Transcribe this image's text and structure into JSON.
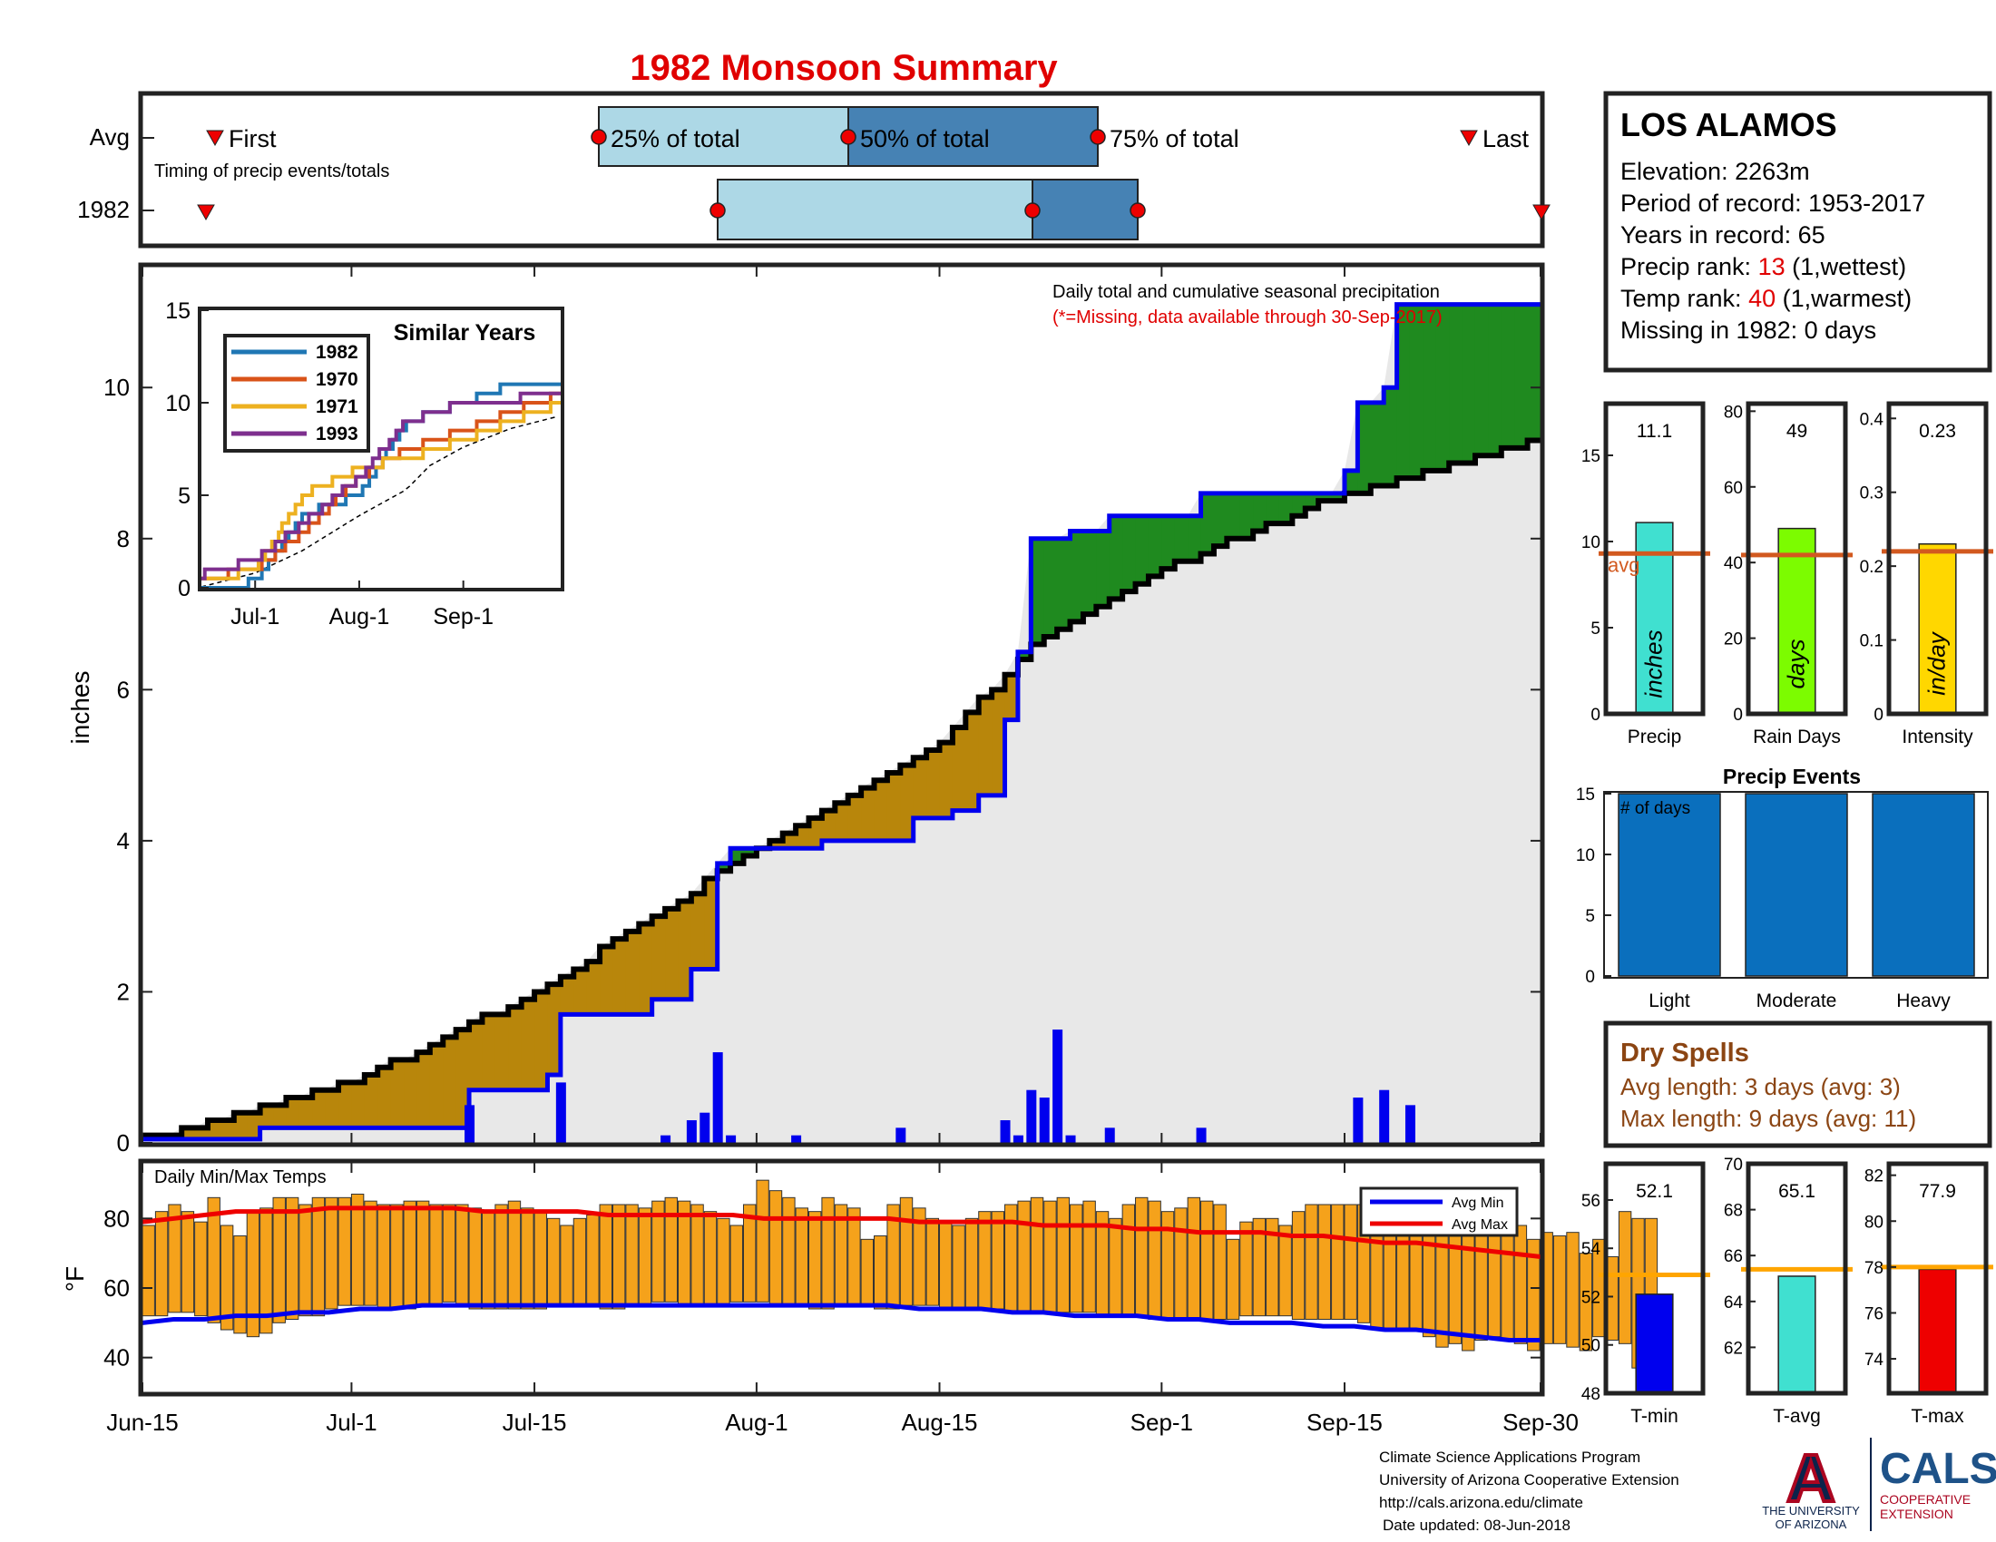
{
  "title": "1982 Monsoon Summary",
  "colors": {
    "title": "#e00000",
    "observed_line": "#0000ee",
    "average_line": "#000000",
    "above_avg_fill": "#1f8a1f",
    "below_avg_fill": "#b8860b",
    "background_fill": "#e8e8e8",
    "daily_bar": "#0000ee",
    "temp_bar": "#f5a21b",
    "avg_min": "#0000ee",
    "avg_max": "#ee0000",
    "precip_bar": "#40e0d0",
    "raindays_bar": "#7cfc00",
    "intensity_bar": "#ffd700",
    "avg_marker": "#d2591f",
    "events_bar": "#0a6fbd",
    "dry_spell_text": "#8b4513",
    "tmin_bar": "#0000ee",
    "tavg_bar": "#40e0d0",
    "tmax_bar": "#ee0000",
    "temp_avg_marker": "#ffa500"
  },
  "timing": {
    "avg_label": "Avg",
    "year_label": "1982",
    "subtitle": "Timing of precip events/totals",
    "first_label": "First",
    "last_label": "Last",
    "p25_label": "25% of total",
    "p50_label": "50% of total",
    "p75_label": "75% of total",
    "avg_dates": {
      "first": "Jun-19",
      "p25": "Jul-19",
      "p50": "Aug-6",
      "p75": "Aug-24",
      "last": "Sep-28"
    },
    "year_dates": {
      "first": "Jun-19",
      "p25": "Jul-28",
      "p50": "Aug-20",
      "p75": "Aug-27",
      "last": "Sep-30"
    }
  },
  "station": {
    "name": "LOS ALAMOS",
    "elevation": "Elevation: 2263m",
    "period": "Period of record: 1953-2017",
    "years": "Years in record: 65",
    "precip_rank_prefix": "Precip rank: ",
    "precip_rank_value": "13",
    "precip_rank_suffix": " (1,wettest)",
    "temp_rank_prefix": "Temp rank: ",
    "temp_rank_value": "40",
    "temp_rank_suffix": " (1,warmest)",
    "missing": "Missing in 1982: 0 days"
  },
  "main_chart": {
    "ylabel": "inches",
    "note": "Daily total and cumulative seasonal precipitation",
    "note_missing": "(*=Missing, data available through 30-Sep-2017)",
    "y_ticks": [
      "0",
      "2",
      "4",
      "6",
      "8",
      "10"
    ],
    "x_ticks": [
      "Jun-15",
      "Jul-1",
      "Jul-15",
      "Aug-1",
      "Aug-15",
      "Sep-1",
      "Sep-15",
      "Sep-30"
    ],
    "inset": {
      "title": "Similar Years",
      "y_ticks": [
        "0",
        "5",
        "10",
        "15"
      ],
      "x_ticks": [
        "Jul-1",
        "Aug-1",
        "Sep-1"
      ],
      "legend": [
        {
          "name": "1982",
          "color": "#1f77b4"
        },
        {
          "name": "1970",
          "color": "#d95319"
        },
        {
          "name": "1971",
          "color": "#edb120"
        },
        {
          "name": "1993",
          "color": "#7e2f8e"
        }
      ]
    }
  },
  "chart_data": [
    {
      "type": "line",
      "title": "Daily total and cumulative seasonal precipitation",
      "ylabel": "inches",
      "xlim": [
        "Jun-15",
        "Sep-30"
      ],
      "ylim": [
        0,
        11.6
      ],
      "series": [
        {
          "name": "1982 cumulative",
          "points": [
            [
              "Jun-15",
              0.05
            ],
            [
              "Jun-24",
              0.2
            ],
            [
              "Jul-9",
              0.2
            ],
            [
              "Jul-10",
              0.7
            ],
            [
              "Jul-16",
              0.9
            ],
            [
              "Jul-17",
              1.7
            ],
            [
              "Jul-23",
              1.7
            ],
            [
              "Jul-24",
              1.9
            ],
            [
              "Jul-27",
              2.3
            ],
            [
              "Jul-29",
              3.7
            ],
            [
              "Jul-30",
              3.9
            ],
            [
              "Aug-6",
              4.0
            ],
            [
              "Aug-13",
              4.3
            ],
            [
              "Aug-16",
              4.4
            ],
            [
              "Aug-18",
              4.6
            ],
            [
              "Aug-20",
              5.6
            ],
            [
              "Aug-21",
              6.5
            ],
            [
              "Aug-22",
              8.0
            ],
            [
              "Aug-25",
              8.1
            ],
            [
              "Aug-28",
              8.3
            ],
            [
              "Sep-4",
              8.6
            ],
            [
              "Sep-15",
              8.9
            ],
            [
              "Sep-16",
              9.8
            ],
            [
              "Sep-18",
              10.0
            ],
            [
              "Sep-19",
              11.1
            ],
            [
              "Sep-30",
              11.1
            ]
          ]
        },
        {
          "name": "Average cumulative",
          "points": [
            [
              "Jun-15",
              0.05
            ],
            [
              "Jul-1",
              0.8
            ],
            [
              "Jul-15",
              2.0
            ],
            [
              "Aug-1",
              3.9
            ],
            [
              "Aug-15",
              5.3
            ],
            [
              "Aug-22",
              6.6
            ],
            [
              "Sep-1",
              7.6
            ],
            [
              "Sep-15",
              8.6
            ],
            [
              "Sep-30",
              9.3
            ]
          ]
        }
      ],
      "daily_totals": [
        [
          "Jul-10",
          0.5
        ],
        [
          "Jul-17",
          0.8
        ],
        [
          "Jul-25",
          0.1
        ],
        [
          "Jul-27",
          0.3
        ],
        [
          "Jul-28",
          0.4
        ],
        [
          "Jul-29",
          1.2
        ],
        [
          "Jul-30",
          0.1
        ],
        [
          "Aug-4",
          0.1
        ],
        [
          "Aug-12",
          0.2
        ],
        [
          "Aug-20",
          0.3
        ],
        [
          "Aug-21",
          0.1
        ],
        [
          "Aug-22",
          0.7
        ],
        [
          "Aug-23",
          0.6
        ],
        [
          "Aug-24",
          1.5
        ],
        [
          "Aug-25",
          0.1
        ],
        [
          "Aug-28",
          0.2
        ],
        [
          "Sep-4",
          0.2
        ],
        [
          "Sep-16",
          0.6
        ],
        [
          "Sep-18",
          0.7
        ],
        [
          "Sep-20",
          0.5
        ]
      ]
    },
    {
      "type": "line",
      "title": "Similar Years",
      "ylim": [
        0,
        15
      ],
      "series": [
        {
          "name": "1982",
          "points": [
            [
              "Jun-15",
              0
            ],
            [
              "Jul-1",
              0.3
            ],
            [
              "Jul-15",
              4
            ],
            [
              "Aug-1",
              5
            ],
            [
              "Aug-15",
              9
            ],
            [
              "Sep-1",
              10
            ],
            [
              "Sep-15",
              11
            ],
            [
              "Sep-30",
              11
            ]
          ]
        },
        {
          "name": "1970",
          "points": [
            [
              "Jun-15",
              0.5
            ],
            [
              "Jul-1",
              1
            ],
            [
              "Jul-15",
              3
            ],
            [
              "Aug-1",
              6
            ],
            [
              "Aug-15",
              7.5
            ],
            [
              "Sep-1",
              8.5
            ],
            [
              "Sep-15",
              9.5
            ],
            [
              "Sep-30",
              10.5
            ]
          ]
        },
        {
          "name": "1971",
          "points": [
            [
              "Jun-15",
              0.3
            ],
            [
              "Jul-1",
              1
            ],
            [
              "Jul-15",
              5
            ],
            [
              "Aug-1",
              6.5
            ],
            [
              "Aug-15",
              7
            ],
            [
              "Sep-1",
              8
            ],
            [
              "Sep-15",
              9
            ],
            [
              "Sep-30",
              10
            ]
          ]
        },
        {
          "name": "1993",
          "points": [
            [
              "Jun-15",
              0.7
            ],
            [
              "Jul-1",
              1.5
            ],
            [
              "Jul-15",
              3.5
            ],
            [
              "Aug-1",
              6
            ],
            [
              "Aug-15",
              9
            ],
            [
              "Sep-1",
              10
            ],
            [
              "Sep-15",
              10.2
            ],
            [
              "Sep-30",
              10.5
            ]
          ]
        }
      ]
    },
    {
      "type": "bar",
      "title": "Daily Min/Max Temps",
      "ylabel": "°F",
      "ylim": [
        30,
        96
      ],
      "daily_min": [
        52,
        52,
        53,
        53,
        52,
        50,
        48,
        47,
        46,
        47,
        50,
        51,
        52,
        52,
        54,
        55,
        55,
        55,
        54,
        54,
        54,
        55,
        55,
        56,
        55,
        54,
        54,
        54,
        54,
        54,
        54,
        55,
        55,
        55,
        55,
        54,
        54,
        55,
        55,
        56,
        56,
        55,
        55,
        55,
        55,
        56,
        56,
        56,
        55,
        55,
        55,
        54,
        54,
        55,
        55,
        55,
        54,
        54,
        55,
        55,
        55,
        54,
        54,
        54,
        54,
        54,
        53,
        53,
        53,
        53,
        53,
        53,
        53,
        52,
        52,
        52,
        52,
        51,
        51,
        51,
        51,
        51,
        51,
        51,
        52,
        52,
        52,
        52,
        51,
        51,
        51,
        51,
        51,
        50,
        48,
        48,
        48,
        48,
        46,
        43,
        44,
        42,
        45,
        46,
        45,
        44,
        42,
        44,
        44,
        43,
        42,
        46,
        45,
        44,
        37,
        42
      ],
      "daily_max": [
        78,
        82,
        84,
        82,
        79,
        86,
        78,
        75,
        82,
        83,
        86,
        86,
        84,
        86,
        86,
        86,
        87,
        85,
        84,
        84,
        85,
        85,
        84,
        84,
        84,
        83,
        82,
        84,
        85,
        83,
        82,
        80,
        78,
        80,
        81,
        84,
        84,
        84,
        83,
        85,
        86,
        85,
        84,
        82,
        80,
        78,
        84,
        91,
        88,
        86,
        83,
        82,
        86,
        84,
        83,
        74,
        75,
        84,
        86,
        83,
        80,
        79,
        78,
        80,
        82,
        82,
        84,
        85,
        86,
        85,
        86,
        84,
        85,
        82,
        80,
        84,
        86,
        85,
        82,
        83,
        86,
        85,
        84,
        74,
        79,
        80,
        80,
        78,
        82,
        84,
        84,
        84,
        84,
        84,
        80,
        78,
        77,
        77,
        79,
        80,
        86,
        83,
        80,
        82,
        80,
        78,
        74,
        76,
        75,
        76,
        70,
        74,
        69,
        82,
        80,
        80
      ],
      "avg_min": [
        50,
        51,
        51,
        52,
        52,
        53,
        53,
        54,
        54,
        55,
        55,
        55,
        55,
        55,
        55,
        55,
        55,
        55,
        55,
        55,
        55,
        55,
        55,
        55,
        55,
        54,
        54,
        54,
        53,
        53,
        52,
        52,
        52,
        51,
        51,
        50,
        50,
        50,
        49,
        49,
        48,
        48,
        47,
        46,
        45,
        45
      ],
      "avg_max": [
        79,
        80,
        81,
        82,
        82,
        82,
        83,
        83,
        83,
        83,
        83,
        82,
        82,
        82,
        82,
        81,
        81,
        81,
        81,
        81,
        80,
        80,
        80,
        80,
        80,
        79,
        79,
        79,
        79,
        78,
        78,
        78,
        77,
        77,
        76,
        76,
        76,
        75,
        75,
        74,
        73,
        73,
        72,
        71,
        70,
        69
      ]
    },
    {
      "type": "bar",
      "title": "Season totals vs average",
      "panels": [
        {
          "name": "Precip",
          "value": 11.1,
          "avg": 9.3,
          "ylim": [
            0,
            18
          ],
          "unit": "inches"
        },
        {
          "name": "Rain Days",
          "value": 49,
          "avg": 42,
          "ylim": [
            0,
            82
          ],
          "unit": "days"
        },
        {
          "name": "Intensity",
          "value": 0.23,
          "avg": 0.22,
          "ylim": [
            0,
            0.42
          ],
          "unit": "in/day"
        }
      ]
    },
    {
      "type": "bar",
      "title": "Precip Events",
      "ylabel": "# of days",
      "categories": [
        "Light",
        "Moderate",
        "Heavy"
      ],
      "values": [
        15,
        15,
        15
      ],
      "ylim": [
        0,
        15
      ]
    },
    {
      "type": "bar",
      "title": "Seasonal temperature vs average",
      "panels": [
        {
          "name": "T-min",
          "value": 52.1,
          "avg": 52.9,
          "ylim": [
            48,
            57.5
          ]
        },
        {
          "name": "T-avg",
          "value": 65.1,
          "avg": 65.4,
          "ylim": [
            60,
            70
          ]
        },
        {
          "name": "T-max",
          "value": 77.9,
          "avg": 78,
          "ylim": [
            72.5,
            82.5
          ]
        }
      ]
    }
  ],
  "small_panels": {
    "precip": {
      "value_label": "11.1",
      "y_ticks": [
        "0",
        "5",
        "10",
        "15"
      ],
      "xlabel": "Precip",
      "unit": "inches",
      "avg_label": "avg"
    },
    "raindays": {
      "value_label": "49",
      "y_ticks": [
        "0",
        "20",
        "40",
        "60",
        "80"
      ],
      "xlabel": "Rain Days",
      "unit": "days"
    },
    "intensity": {
      "value_label": "0.23",
      "y_ticks": [
        "0",
        "0.1",
        "0.2",
        "0.3",
        "0.4"
      ],
      "xlabel": "Intensity",
      "unit": "in/day"
    }
  },
  "events": {
    "title": "Precip Events",
    "label": "# of days",
    "y_ticks": [
      "0",
      "5",
      "10",
      "15"
    ],
    "categories": [
      "Light",
      "Moderate",
      "Heavy"
    ]
  },
  "dry_spells": {
    "title": "Dry Spells",
    "avg_length": "Avg length: 3 days (avg: 3)",
    "max_length": "Max length: 9 days (avg: 11)"
  },
  "temps": {
    "label": "Daily Min/Max Temps",
    "ylabel": "°F",
    "y_ticks": [
      "40",
      "60",
      "80"
    ],
    "legend_min": "Avg Min",
    "legend_max": "Avg Max"
  },
  "temp_panels": {
    "tmin": {
      "value_label": "52.1",
      "y_ticks": [
        "48",
        "50",
        "52",
        "54",
        "56"
      ],
      "xlabel": "T-min"
    },
    "tavg": {
      "value_label": "65.1",
      "y_ticks": [
        "62",
        "64",
        "66",
        "68",
        "70"
      ],
      "xlabel": "T-avg"
    },
    "tmax": {
      "value_label": "77.9",
      "y_ticks": [
        "74",
        "76",
        "78",
        "80",
        "82"
      ],
      "xlabel": "T-max"
    }
  },
  "footer": {
    "line1": "Climate Science Applications Program",
    "line2": "University of Arizona Cooperative Extension",
    "line3": "http://cals.arizona.edu/climate",
    "line4": "Date updated: 08-Jun-2018",
    "ua_logo_letter": "A",
    "ua_line1": "THE UNIVERSITY",
    "ua_line2": "OF ARIZONA",
    "cals_text": "CALS",
    "cals_line1": "COOPERATIVE",
    "cals_line2": "EXTENSION"
  }
}
